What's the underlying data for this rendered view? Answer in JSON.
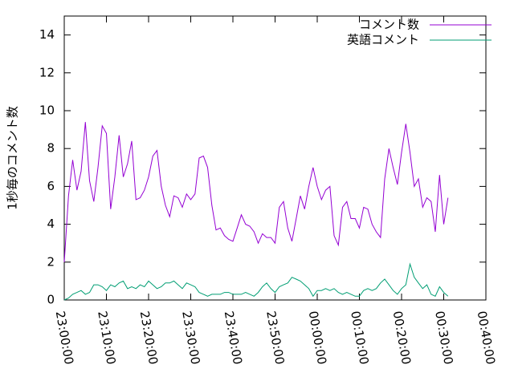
{
  "chart_data": {
    "type": "line",
    "y_label": "1秒毎のコメント数",
    "x": [
      "23:00:00",
      "23:01:00",
      "23:02:00",
      "23:03:00",
      "23:04:00",
      "23:05:00",
      "23:06:00",
      "23:07:00",
      "23:08:00",
      "23:09:00",
      "23:10:00",
      "23:11:00",
      "23:12:00",
      "23:13:00",
      "23:14:00",
      "23:15:00",
      "23:16:00",
      "23:17:00",
      "23:18:00",
      "23:19:00",
      "23:20:00",
      "23:21:00",
      "23:22:00",
      "23:23:00",
      "23:24:00",
      "23:25:00",
      "23:26:00",
      "23:27:00",
      "23:28:00",
      "23:29:00",
      "23:30:00",
      "23:31:00",
      "23:32:00",
      "23:33:00",
      "23:34:00",
      "23:35:00",
      "23:36:00",
      "23:37:00",
      "23:38:00",
      "23:39:00",
      "23:40:00",
      "23:41:00",
      "23:42:00",
      "23:43:00",
      "23:44:00",
      "23:45:00",
      "23:46:00",
      "23:47:00",
      "23:48:00",
      "23:49:00",
      "23:50:00",
      "23:51:00",
      "23:52:00",
      "23:53:00",
      "23:54:00",
      "23:55:00",
      "23:56:00",
      "23:57:00",
      "23:58:00",
      "23:59:00",
      "00:00:00",
      "00:01:00",
      "00:02:00",
      "00:03:00",
      "00:04:00",
      "00:05:00",
      "00:06:00",
      "00:07:00",
      "00:08:00",
      "00:09:00",
      "00:10:00",
      "00:11:00",
      "00:12:00",
      "00:13:00",
      "00:14:00",
      "00:15:00",
      "00:16:00",
      "00:17:00",
      "00:18:00",
      "00:19:00",
      "00:20:00",
      "00:21:00",
      "00:22:00",
      "00:23:00",
      "00:24:00",
      "00:25:00",
      "00:26:00",
      "00:27:00",
      "00:28:00",
      "00:29:00",
      "00:30:00",
      "00:31:00"
    ],
    "series": [
      {
        "name": "コメント数",
        "color": "#9400d3",
        "values": [
          2.0,
          5.5,
          7.4,
          5.8,
          6.8,
          9.4,
          6.3,
          5.2,
          7.0,
          9.2,
          8.8,
          4.8,
          6.5,
          8.7,
          6.5,
          7.2,
          8.4,
          5.3,
          5.4,
          5.8,
          6.5,
          7.6,
          7.9,
          6.0,
          5.0,
          4.4,
          5.5,
          5.4,
          4.9,
          5.6,
          5.3,
          5.6,
          7.5,
          7.6,
          7.0,
          5.0,
          3.7,
          3.8,
          3.4,
          3.2,
          3.1,
          3.8,
          4.5,
          4.0,
          3.9,
          3.6,
          3.0,
          3.5,
          3.3,
          3.3,
          3.0,
          4.9,
          5.2,
          3.8,
          3.1,
          4.3,
          5.5,
          4.8,
          6.0,
          7.0,
          6.0,
          5.3,
          5.8,
          6.0,
          3.4,
          2.9,
          4.9,
          5.2,
          4.3,
          4.3,
          3.8,
          4.9,
          4.8,
          4.0,
          3.6,
          3.3,
          6.4,
          8.0,
          7.0,
          6.1,
          7.8,
          9.3,
          7.8,
          6.0,
          6.4,
          4.9,
          5.4,
          5.2,
          3.6,
          6.6,
          4.0,
          5.4
        ]
      },
      {
        "name": "英語コメント",
        "color": "#009e73",
        "values": [
          0.0,
          0.1,
          0.3,
          0.4,
          0.5,
          0.3,
          0.4,
          0.8,
          0.8,
          0.7,
          0.5,
          0.8,
          0.7,
          0.9,
          1.0,
          0.6,
          0.7,
          0.6,
          0.8,
          0.7,
          1.0,
          0.8,
          0.6,
          0.7,
          0.9,
          0.9,
          1.0,
          0.8,
          0.6,
          0.9,
          0.8,
          0.7,
          0.4,
          0.3,
          0.2,
          0.3,
          0.3,
          0.3,
          0.4,
          0.4,
          0.3,
          0.3,
          0.3,
          0.4,
          0.3,
          0.2,
          0.4,
          0.7,
          0.9,
          0.6,
          0.4,
          0.7,
          0.8,
          0.9,
          1.2,
          1.1,
          1.0,
          0.8,
          0.6,
          0.2,
          0.5,
          0.5,
          0.6,
          0.5,
          0.6,
          0.4,
          0.3,
          0.4,
          0.3,
          0.2,
          0.2,
          0.5,
          0.6,
          0.5,
          0.6,
          0.9,
          1.1,
          0.8,
          0.5,
          0.3,
          0.6,
          0.8,
          1.9,
          1.2,
          0.9,
          0.6,
          0.8,
          0.3,
          0.2,
          0.7,
          0.4,
          0.2
        ]
      }
    ],
    "xlim": [
      "23:00:00",
      "00:40:00"
    ],
    "xticks": [
      "23:00:00",
      "23:10:00",
      "23:20:00",
      "23:30:00",
      "23:40:00",
      "23:50:00",
      "00:00:00",
      "00:10:00",
      "00:20:00",
      "00:30:00",
      "00:40:00"
    ],
    "ylim": [
      0,
      15
    ],
    "yticks": [
      0,
      2,
      4,
      6,
      8,
      10,
      12,
      14
    ],
    "legend": "top-right"
  }
}
